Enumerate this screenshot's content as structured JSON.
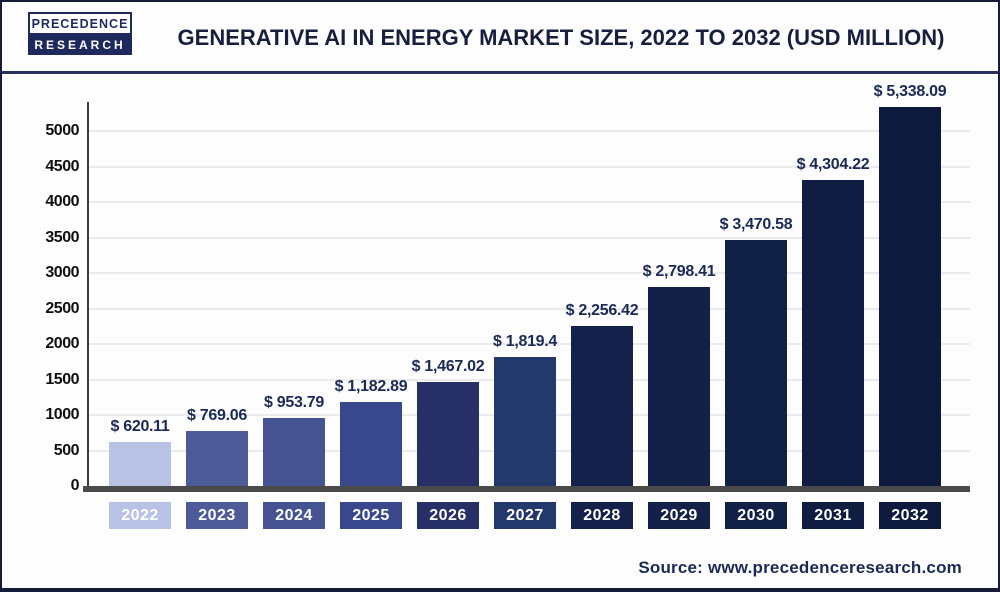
{
  "header": {
    "logo_line1": "PRECEDENCE",
    "logo_line2": "RESEARCH",
    "title": "GENERATIVE AI IN ENERGY MARKET SIZE, 2022 TO 2032 (USD MILLION)"
  },
  "footer": {
    "source": "Source: www.precedenceresearch.com"
  },
  "colors": {
    "accent_navy": "#1b2a55",
    "logo_navy": "#1e2a5e",
    "axis_line": "#3d3d3d",
    "baseline": "#4a4a4a",
    "gridline": "#ebebeb"
  },
  "chart_data": {
    "type": "bar",
    "title": "Generative AI in Energy Market Size, 2022 to 2032 (USD Million)",
    "unit": "USD Million",
    "categories": [
      "2022",
      "2023",
      "2024",
      "2025",
      "2026",
      "2027",
      "2028",
      "2029",
      "2030",
      "2031",
      "2032"
    ],
    "values": [
      620.11,
      769.06,
      953.79,
      1182.89,
      1467.02,
      1819.4,
      2256.42,
      2798.41,
      3470.58,
      4304.22,
      5338.09
    ],
    "value_labels": [
      "$ 620.11",
      "$ 769.06",
      "$ 953.79",
      "$ 1,182.89",
      "$ 1,467.02",
      "$ 1,819.4",
      "$ 2,256.42",
      "$ 2,798.41",
      "$ 3,470.58",
      "$ 4,304.22",
      "$ 5,338.09"
    ],
    "bar_colors": [
      "#b7c2e4",
      "#4d5c99",
      "#455393",
      "#39488c",
      "#262f66",
      "#23386b",
      "#14224b",
      "#132148",
      "#112045",
      "#0f1d42",
      "#0d1a3e"
    ],
    "y_ticks": [
      0,
      500,
      1000,
      1500,
      2000,
      2500,
      3000,
      3500,
      4000,
      4500,
      5000
    ],
    "ylim": [
      0,
      5400
    ],
    "xlabel": "",
    "ylabel": "",
    "grid": "horizontal",
    "legend": "none"
  }
}
